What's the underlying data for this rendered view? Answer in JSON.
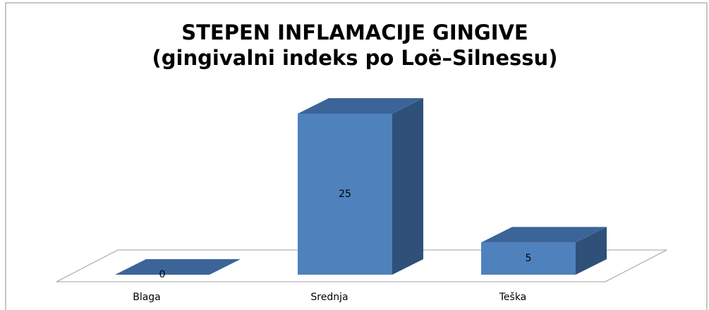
{
  "chart_data": {
    "type": "bar3d",
    "title": "STEPEN INFLAMACIJE GINGIVE",
    "subtitle": "(gingivalni indeks po Loë–Silnessu)",
    "categories": [
      "Blaga",
      "Srednja",
      "Teška"
    ],
    "values": [
      0,
      25,
      5
    ],
    "color": "#4f81bd"
  }
}
